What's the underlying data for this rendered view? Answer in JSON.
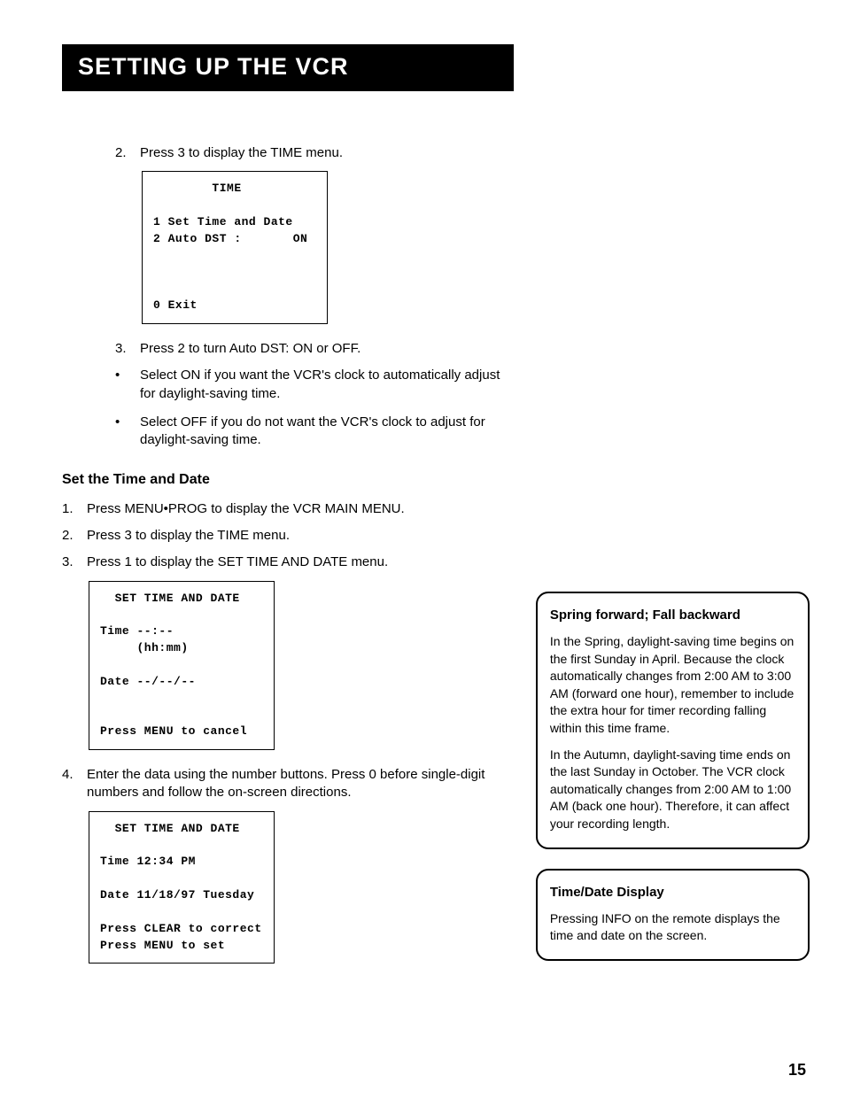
{
  "title": "SETTING UP THE VCR",
  "page_number": "15",
  "colors": {
    "bg": "#ffffff",
    "text": "#000000",
    "titlebar_bg": "#000000",
    "titlebar_text": "#ffffff"
  },
  "step2": {
    "n": "2.",
    "t": "Press 3 to display the TIME menu."
  },
  "screen_time": "        TIME\n\n1 Set Time and Date\n2 Auto DST :       ON\n\n\n\n0 Exit",
  "step3": {
    "n": "3.",
    "t": "Press 2 to turn Auto DST: ON or OFF."
  },
  "bullet1": "Select ON if you want the VCR's clock to automatically adjust for daylight-saving time.",
  "bullet2": "Select OFF if you do not want the VCR's clock to adjust for daylight-saving time.",
  "subheading": "Set the Time and Date",
  "td1": {
    "n": "1.",
    "t": "Press MENU•PROG to display the VCR MAIN MENU."
  },
  "td2": {
    "n": "2.",
    "t": "Press 3 to display the TIME menu."
  },
  "td3": {
    "n": "3.",
    "t": "Press 1 to display the SET TIME AND DATE menu."
  },
  "screen_setdate_blank": "  SET TIME AND DATE\n\nTime --:--\n     (hh:mm)\n\nDate --/--/--\n\n\nPress MENU to cancel",
  "td4": {
    "n": "4.",
    "t": "Enter the data using the number buttons. Press 0 before single-digit numbers and follow the on-screen directions."
  },
  "screen_setdate_filled": "  SET TIME AND DATE\n\nTime 12:34 PM\n\nDate 11/18/97 Tuesday\n\nPress CLEAR to correct\nPress MENU to set",
  "callout1": {
    "h": "Spring forward; Fall backward",
    "p1": "In the Spring, daylight-saving time begins on the first Sunday in April. Because the clock automatically changes from 2:00 AM to 3:00 AM (forward one hour), remember to include the extra hour for timer recording falling within this time frame.",
    "p2": "In the Autumn, daylight-saving time ends on the last Sunday in October. The VCR clock automatically changes from 2:00 AM to 1:00 AM (back one hour). Therefore, it can affect your recording length."
  },
  "callout2": {
    "h": "Time/Date Display",
    "p1": "Pressing INFO on the remote displays the time and date on the screen."
  }
}
